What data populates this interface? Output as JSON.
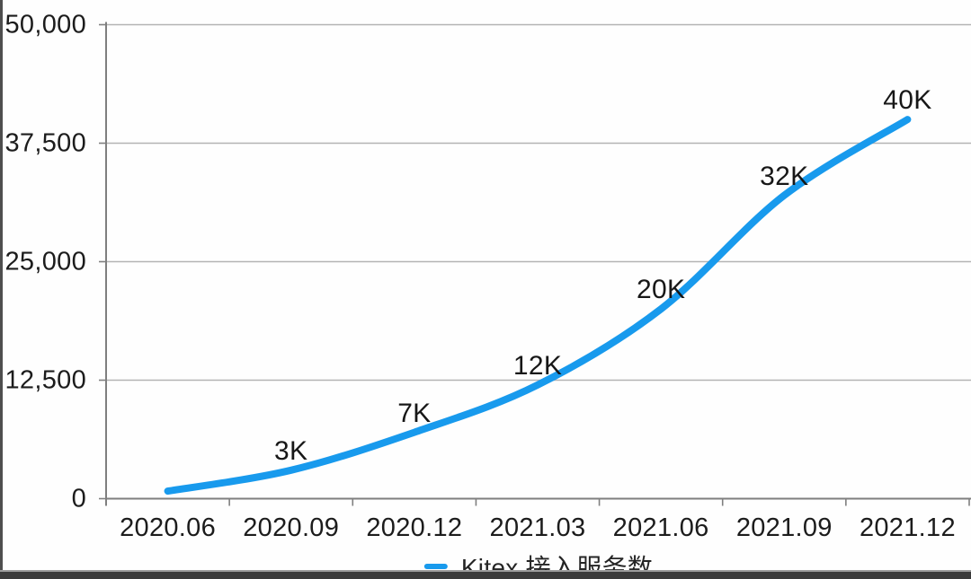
{
  "chart_data": {
    "type": "line",
    "title": "",
    "categories": [
      "2020.06",
      "2020.09",
      "2020.12",
      "2021.03",
      "2021.06",
      "2021.09",
      "2021.12"
    ],
    "series": [
      {
        "name": "Kitex 接入服务数",
        "values": [
          800,
          3000,
          7000,
          12000,
          20000,
          32000,
          40000
        ],
        "point_labels": [
          "",
          "3K",
          "7K",
          "12K",
          "20K",
          "32K",
          "40K"
        ],
        "color": "#189aed"
      }
    ],
    "xlabel": "",
    "ylabel": "",
    "ylim": [
      0,
      50000
    ],
    "y_ticks": [
      0,
      12500,
      25000,
      37500,
      50000
    ],
    "y_tick_labels": [
      "0",
      "12,500",
      "25,000",
      "37,500",
      "50,000"
    ],
    "grid": "horizontal-major-only",
    "legend_position": "bottom-center"
  },
  "legend": {
    "label": "Kitex 接入服务数"
  },
  "colors": {
    "line": "#189aed",
    "grid": "#b3b3b3",
    "axis": "#7f7f7f",
    "text": "#1c1c1c",
    "side_strip": "#4e4e4e",
    "bottom_bar_dark": "#3b3b3b",
    "bottom_bar_light": "#9c9c9c"
  }
}
